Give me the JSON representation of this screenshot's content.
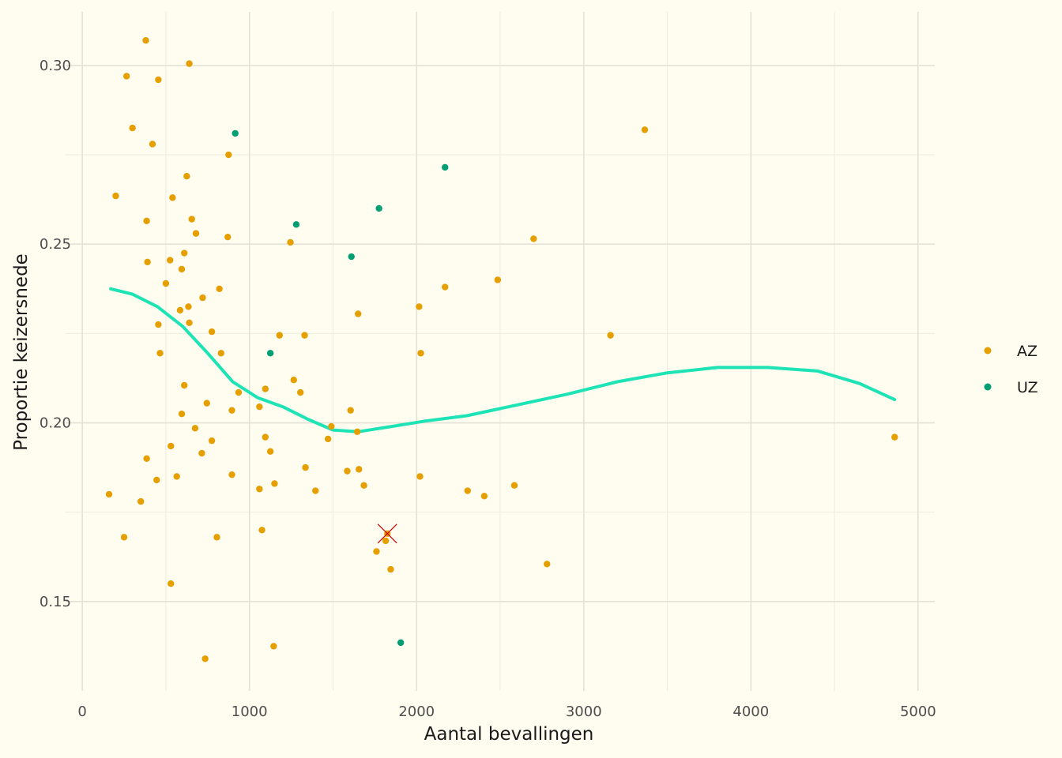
{
  "chart_data": {
    "type": "scatter",
    "xlabel": "Aantal bevallingen",
    "ylabel": "Proportie keizersnede",
    "xlim": [
      -100,
      5100
    ],
    "ylim": [
      0.125,
      0.315
    ],
    "x_ticks": [
      0,
      1000,
      2000,
      3000,
      4000,
      5000
    ],
    "x_tick_labels": [
      "0",
      "1000",
      "2000",
      "3000",
      "4000",
      "5000"
    ],
    "y_ticks": [
      0.15,
      0.2,
      0.25,
      0.3
    ],
    "y_tick_labels": [
      "0.15",
      "0.20",
      "0.25",
      "0.30"
    ],
    "grid": true,
    "legend_position": "right",
    "legend": [
      {
        "label": "AZ",
        "color": "#e69f00"
      },
      {
        "label": "UZ",
        "color": "#009e73"
      }
    ],
    "series": [
      {
        "name": "AZ",
        "color": "#e69f00",
        "points": [
          [
            380,
            0.307
          ],
          [
            265,
            0.297
          ],
          [
            455,
            0.296
          ],
          [
            640,
            0.3005
          ],
          [
            300,
            0.2825
          ],
          [
            420,
            0.278
          ],
          [
            875,
            0.275
          ],
          [
            625,
            0.269
          ],
          [
            200,
            0.2635
          ],
          [
            540,
            0.263
          ],
          [
            385,
            0.2565
          ],
          [
            655,
            0.257
          ],
          [
            680,
            0.253
          ],
          [
            870,
            0.252
          ],
          [
            1245,
            0.2505
          ],
          [
            610,
            0.2475
          ],
          [
            390,
            0.245
          ],
          [
            525,
            0.2455
          ],
          [
            595,
            0.243
          ],
          [
            500,
            0.239
          ],
          [
            820,
            0.2375
          ],
          [
            720,
            0.235
          ],
          [
            585,
            0.2315
          ],
          [
            635,
            0.2325
          ],
          [
            455,
            0.2275
          ],
          [
            640,
            0.228
          ],
          [
            775,
            0.2255
          ],
          [
            1180,
            0.2245
          ],
          [
            1330,
            0.2245
          ],
          [
            465,
            0.2195
          ],
          [
            830,
            0.2195
          ],
          [
            610,
            0.2105
          ],
          [
            1095,
            0.2095
          ],
          [
            1265,
            0.212
          ],
          [
            935,
            0.2085
          ],
          [
            1305,
            0.2085
          ],
          [
            745,
            0.2055
          ],
          [
            1060,
            0.2045
          ],
          [
            895,
            0.2035
          ],
          [
            595,
            0.2025
          ],
          [
            675,
            0.1985
          ],
          [
            1490,
            0.199
          ],
          [
            1095,
            0.196
          ],
          [
            775,
            0.195
          ],
          [
            1470,
            0.1955
          ],
          [
            530,
            0.1935
          ],
          [
            715,
            0.1915
          ],
          [
            1125,
            0.192
          ],
          [
            385,
            0.19
          ],
          [
            1335,
            0.1875
          ],
          [
            565,
            0.185
          ],
          [
            445,
            0.184
          ],
          [
            895,
            0.1855
          ],
          [
            1150,
            0.183
          ],
          [
            1060,
            0.1815
          ],
          [
            1395,
            0.181
          ],
          [
            160,
            0.18
          ],
          [
            350,
            0.178
          ],
          [
            1075,
            0.17
          ],
          [
            250,
            0.168
          ],
          [
            805,
            0.168
          ],
          [
            530,
            0.155
          ],
          [
            735,
            0.134
          ],
          [
            1145,
            0.1375
          ],
          [
            1605,
            0.2035
          ],
          [
            1650,
            0.2305
          ],
          [
            1645,
            0.1975
          ],
          [
            1585,
            0.1865
          ],
          [
            1655,
            0.187
          ],
          [
            1685,
            0.1825
          ],
          [
            1760,
            0.164
          ],
          [
            1815,
            0.167
          ],
          [
            1825,
            0.169
          ],
          [
            1845,
            0.159
          ],
          [
            2015,
            0.2325
          ],
          [
            2025,
            0.2195
          ],
          [
            2170,
            0.238
          ],
          [
            2020,
            0.185
          ],
          [
            2305,
            0.181
          ],
          [
            2405,
            0.1795
          ],
          [
            2485,
            0.24
          ],
          [
            2585,
            0.1825
          ],
          [
            2700,
            0.2515
          ],
          [
            2780,
            0.1605
          ],
          [
            3160,
            0.2245
          ],
          [
            3365,
            0.282
          ],
          [
            4860,
            0.196
          ]
        ]
      },
      {
        "name": "UZ",
        "color": "#009e73",
        "points": [
          [
            915,
            0.281
          ],
          [
            2170,
            0.2715
          ],
          [
            1775,
            0.26
          ],
          [
            1280,
            0.2555
          ],
          [
            1610,
            0.2465
          ],
          [
            1125,
            0.2195
          ],
          [
            1905,
            0.1385
          ]
        ]
      }
    ],
    "smooth_line": {
      "color": "#1de3b5",
      "points": [
        [
          170,
          0.2375
        ],
        [
          300,
          0.236
        ],
        [
          450,
          0.2325
        ],
        [
          600,
          0.227
        ],
        [
          750,
          0.2195
        ],
        [
          900,
          0.2115
        ],
        [
          1050,
          0.207
        ],
        [
          1200,
          0.2045
        ],
        [
          1350,
          0.201
        ],
        [
          1500,
          0.198
        ],
        [
          1650,
          0.1975
        ],
        [
          1850,
          0.199
        ],
        [
          2050,
          0.2005
        ],
        [
          2300,
          0.202
        ],
        [
          2600,
          0.205
        ],
        [
          2900,
          0.208
        ],
        [
          3200,
          0.2115
        ],
        [
          3500,
          0.214
        ],
        [
          3800,
          0.2155
        ],
        [
          4100,
          0.2155
        ],
        [
          4400,
          0.2145
        ],
        [
          4650,
          0.211
        ],
        [
          4860,
          0.2065
        ]
      ]
    },
    "annotation": {
      "marker": "x",
      "x": 1825,
      "y": 0.169,
      "color": "#cc0000"
    }
  }
}
